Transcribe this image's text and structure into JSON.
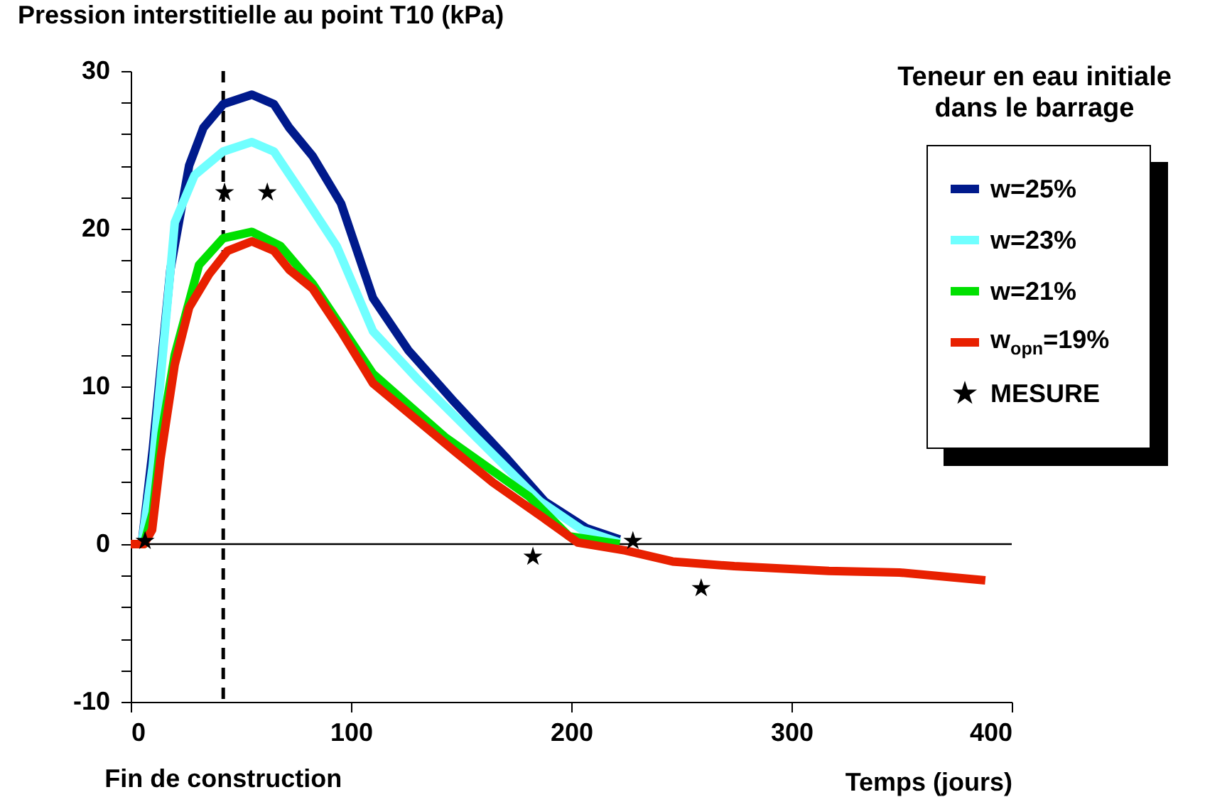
{
  "chart_data": {
    "type": "line",
    "xlabel": "Temps (jours)",
    "ylabel": "Pression interstitielle au point T10 (kPa)",
    "legend_title": "Teneur en eau initiale dans le barrage",
    "xlim": [
      0,
      400
    ],
    "ylim": [
      -10,
      30
    ],
    "xticks": [
      0,
      100,
      200,
      300,
      400
    ],
    "yticks": [
      -10,
      {
        "value": -8,
        "label": null
      },
      {
        "value": -6,
        "label": null
      },
      {
        "value": -4,
        "label": null
      },
      {
        "value": -2,
        "label": null
      },
      0,
      {
        "value": 2,
        "label": null
      },
      {
        "value": 4,
        "label": null
      },
      {
        "value": 6,
        "label": null
      },
      {
        "value": 8,
        "label": null
      },
      10,
      {
        "value": 12,
        "label": null
      },
      {
        "value": 14,
        "label": null
      },
      {
        "value": 16,
        "label": null
      },
      {
        "value": 18,
        "label": null
      },
      20,
      {
        "value": 22,
        "label": null
      },
      {
        "value": 24,
        "label": null
      },
      {
        "value": 26,
        "label": null
      },
      {
        "value": 28,
        "label": null
      },
      30
    ],
    "grid": false,
    "legend": "right",
    "line_style": "solid",
    "marker": "none",
    "ref_lines": [
      {
        "axis": "y",
        "value": 0,
        "color": "#000000",
        "line_style": "solid"
      },
      {
        "axis": "x",
        "value": 42,
        "label": "Fin de construction",
        "color": "#000000",
        "line_style": "dashed"
      }
    ],
    "series": [
      {
        "name": "w=25%",
        "color": "#001a8c",
        "x": [
          0,
          5,
          10,
          18,
          26.5,
          33,
          42,
          55,
          65,
          72,
          82.6,
          95.5,
          110,
          126,
          147,
          171,
          188,
          207,
          222
        ],
        "values": [
          0,
          0,
          6,
          17.4,
          24,
          26.4,
          27.9,
          28.5,
          27.9,
          26.4,
          24.6,
          21.6,
          15.6,
          12.3,
          9.0,
          5.4,
          2.7,
          1.0,
          0.3
        ]
      },
      {
        "name": "w=23%",
        "color": "#70ffff",
        "x": [
          0,
          5,
          10,
          20,
          29,
          42,
          55,
          65,
          78,
          93.5,
          110,
          130,
          151.6,
          186,
          205,
          222
        ],
        "values": [
          0,
          0,
          5,
          20.4,
          23.4,
          24.9,
          25.5,
          24.9,
          22.2,
          18.9,
          13.5,
          10.5,
          7.5,
          2.7,
          0.9,
          0.1
        ]
      },
      {
        "name": "w=21%",
        "color": "#00e000",
        "x": [
          0,
          6,
          10,
          14,
          20,
          31,
          42,
          55,
          68,
          82.6,
          110,
          142.6,
          181,
          199,
          222
        ],
        "values": [
          0,
          0,
          2,
          7,
          12,
          17.7,
          19.4,
          19.8,
          18.9,
          16.5,
          10.8,
          6.8,
          3.0,
          0.5,
          0
        ]
      },
      {
        "name": "w$_{opn}$=19%",
        "color": "#e82000",
        "x": [
          0,
          6,
          9.7,
          13.5,
          20,
          26.5,
          35.5,
          44,
          55,
          65,
          72,
          82.6,
          95.5,
          110,
          128,
          147,
          164.5,
          186,
          203,
          224.5,
          246,
          274,
          317,
          349,
          388
        ],
        "values": [
          0,
          0,
          0.9,
          5.4,
          11.4,
          15,
          17.1,
          18.6,
          19.2,
          18.6,
          17.4,
          16.2,
          13.5,
          10.2,
          8.1,
          5.9,
          3.9,
          1.8,
          0.1,
          -0.4,
          -1.1,
          -1.4,
          -1.7,
          -1.8,
          -2.3
        ]
      },
      {
        "name": "MESURE",
        "type": "scatter",
        "marker": "star",
        "color": "#000000",
        "x": [
          6.5,
          42.6,
          62,
          182.6,
          228,
          259
        ],
        "values": [
          0.2,
          22.3,
          22.3,
          -0.8,
          0.2,
          -2.8
        ]
      }
    ]
  }
}
